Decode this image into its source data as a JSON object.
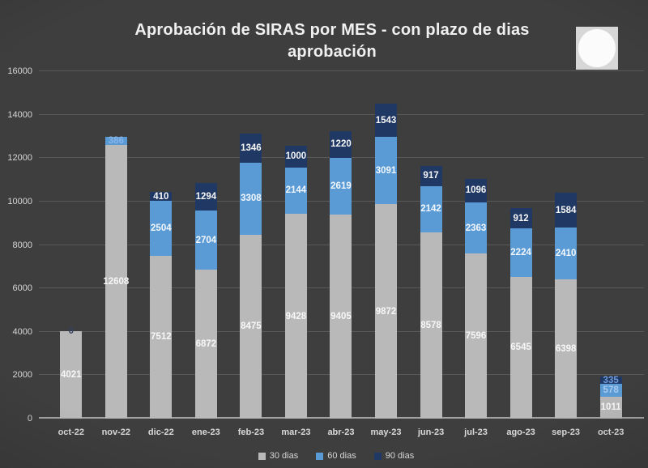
{
  "page": {
    "background": "#3e3e3e"
  },
  "title": {
    "line1": "Aprobación de SIRAS por MES - con plazo de dias",
    "line2": "aprobación"
  },
  "overlay": {
    "description": "white-circle-on-square"
  },
  "chart_data": {
    "type": "bar",
    "stacked": true,
    "title": "Aprobación de SIRAS por MES - con plazo de dias aprobación",
    "xlabel": "",
    "ylabel": "",
    "ylim": [
      0,
      16000
    ],
    "ytick_step": 2000,
    "grid": true,
    "legend_position": "bottom",
    "categories": [
      "oct-22",
      "nov-22",
      "dic-22",
      "ene-23",
      "feb-23",
      "mar-23",
      "abr-23",
      "may-23",
      "jun-23",
      "jul-23",
      "ago-23",
      "sep-23",
      "oct-23"
    ],
    "series": [
      {
        "name": "30 dias",
        "color": "#b9b9b9",
        "label_color": "#f7f7f7",
        "values": [
          4021,
          12608,
          7512,
          6872,
          8475,
          9428,
          9405,
          9872,
          8578,
          7596,
          6545,
          6398,
          1011
        ]
      },
      {
        "name": "60 dias",
        "color": "#5b9bd5",
        "label_color": "#f2f7fd",
        "values": [
          0,
          386,
          2504,
          2704,
          3308,
          2144,
          2619,
          3091,
          2142,
          2363,
          2224,
          2410,
          578
        ]
      },
      {
        "name": "90 dias",
        "color": "#1f3864",
        "label_color": "#f5f5f5",
        "values": [
          null,
          null,
          410,
          1294,
          1346,
          1000,
          1220,
          1543,
          917,
          1096,
          912,
          1584,
          335
        ]
      }
    ],
    "label_overrides": [
      {
        "series": "60 dias",
        "category": "oct-22",
        "color": "#33435f"
      },
      {
        "series": "60 dias",
        "category": "nov-22",
        "color": "#8ab4e8"
      },
      {
        "series": "60 dias",
        "category": "oct-23",
        "color": "#a9c9ee"
      },
      {
        "series": "90 dias",
        "category": "oct-23",
        "color": "#6f9bd8"
      }
    ]
  }
}
